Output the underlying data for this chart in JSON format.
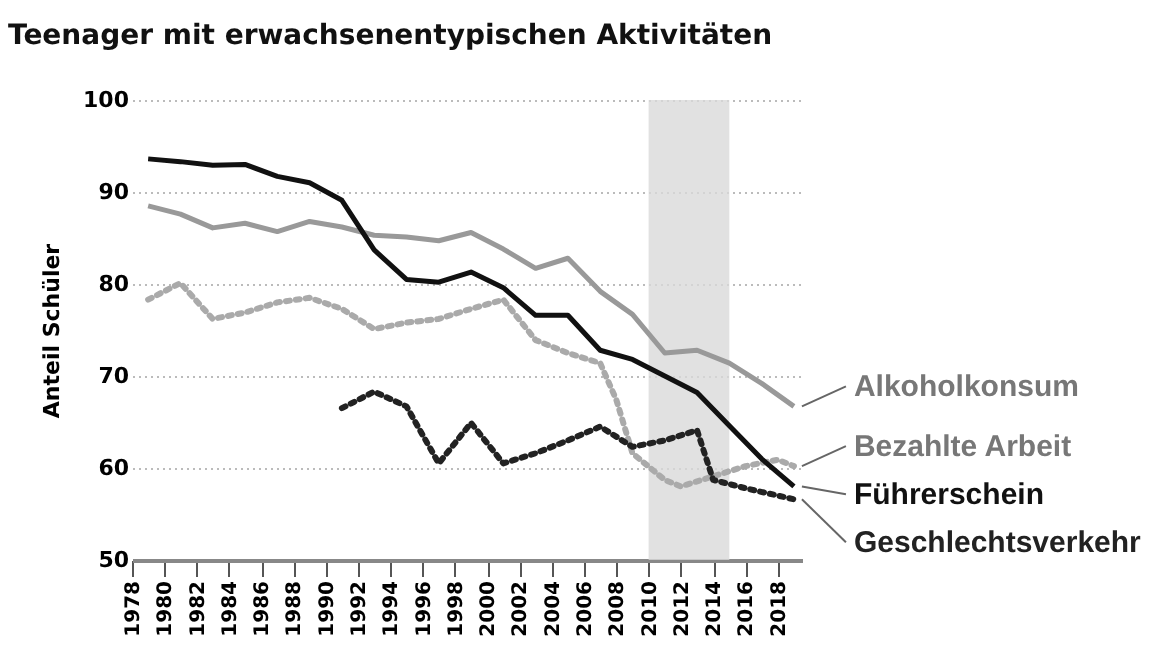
{
  "chart_data": {
    "type": "line",
    "title": "Teenager mit erwachsenentypischen Aktivitäten",
    "ylabel": "Anteil Schüler",
    "xlim": [
      1978,
      2019.5
    ],
    "ylim": [
      50,
      100
    ],
    "xticks": [
      1978,
      1980,
      1982,
      1984,
      1986,
      1988,
      1990,
      1992,
      1994,
      1996,
      1998,
      2000,
      2002,
      2004,
      2006,
      2008,
      2010,
      2012,
      2014,
      2016,
      2018
    ],
    "yticks": [
      50,
      60,
      70,
      80,
      90,
      100
    ],
    "grid": "y",
    "bands": [
      {
        "axis": "x",
        "from": 2010,
        "to": 2015,
        "color": "#d9d9d9"
      }
    ],
    "series": [
      {
        "name": "Alkoholkonsum",
        "color": "#999999",
        "line_style": "solid",
        "x": [
          1979,
          1981,
          1983,
          1985,
          1987,
          1989,
          1991,
          1993,
          1995,
          1997,
          1999,
          2001,
          2003,
          2005,
          2007,
          2009,
          2011,
          2013,
          2015,
          2017,
          2019
        ],
        "values": [
          88.5,
          87.6,
          86.1,
          86.6,
          85.7,
          86.8,
          86.2,
          85.3,
          85.1,
          84.7,
          85.6,
          83.8,
          81.7,
          82.8,
          79.2,
          76.7,
          72.5,
          72.8,
          71.4,
          69.2,
          66.7
        ]
      },
      {
        "name": "Bezahlte Arbeit",
        "color": "#aaaaaa",
        "line_style": "dotted",
        "x": [
          1979,
          1981,
          1983,
          1985,
          1987,
          1989,
          1991,
          1993,
          1995,
          1997,
          1999,
          2001,
          2003,
          2005,
          2007,
          2008,
          2009,
          2011,
          2012,
          2014,
          2016,
          2018,
          2019
        ],
        "values": [
          78.3,
          80.1,
          76.2,
          76.9,
          78.0,
          78.5,
          77.3,
          75.1,
          75.8,
          76.2,
          77.3,
          78.3,
          73.9,
          72.5,
          71.4,
          67.4,
          61.6,
          58.7,
          58.0,
          59.1,
          60.2,
          60.9,
          60.2
        ]
      },
      {
        "name": "Führerschein",
        "color": "#111111",
        "line_style": "solid",
        "x": [
          1979,
          1981,
          1983,
          1985,
          1987,
          1989,
          1991,
          1993,
          1995,
          1997,
          1999,
          2001,
          2003,
          2005,
          2007,
          2009,
          2011,
          2013,
          2015,
          2017,
          2019
        ],
        "values": [
          93.6,
          93.3,
          92.9,
          93.0,
          91.7,
          91.0,
          89.1,
          83.7,
          80.5,
          80.2,
          81.3,
          79.6,
          76.6,
          76.6,
          72.8,
          71.8,
          70.0,
          68.2,
          64.6,
          61.0,
          58.0
        ]
      },
      {
        "name": "Geschlechtsverkehr",
        "color": "#222222",
        "line_style": "dotted",
        "x": [
          1991,
          1993,
          1995,
          1997,
          1999,
          2001,
          2003,
          2005,
          2007,
          2009,
          2011,
          2013,
          2014,
          2016,
          2019
        ],
        "values": [
          66.5,
          68.3,
          66.7,
          60.5,
          64.9,
          60.5,
          61.6,
          63.0,
          64.5,
          62.3,
          63.0,
          64.1,
          58.7,
          57.8,
          56.6
        ]
      }
    ]
  }
}
